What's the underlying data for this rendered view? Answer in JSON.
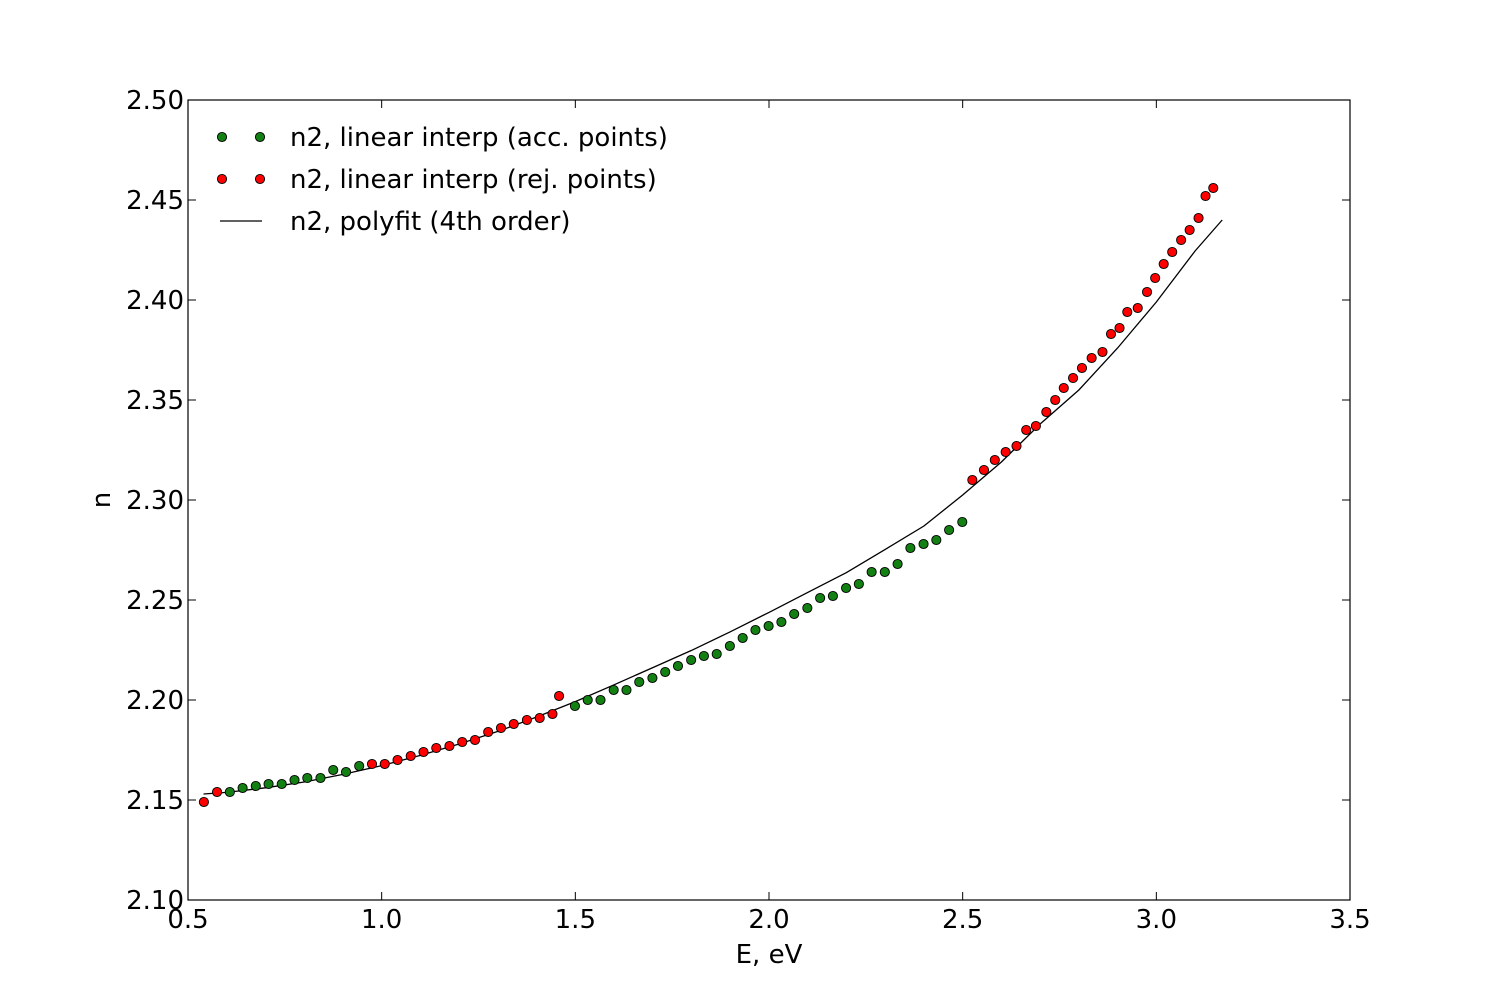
{
  "chart_data": {
    "type": "scatter",
    "title": "",
    "xlabel": "E, eV",
    "ylabel": "n",
    "xlim": [
      0.5,
      3.5
    ],
    "ylim": [
      2.1,
      2.5
    ],
    "xticks": [
      "0.5",
      "1.0",
      "1.5",
      "2.0",
      "2.5",
      "3.0",
      "3.5"
    ],
    "yticks": [
      "2.10",
      "2.15",
      "2.20",
      "2.25",
      "2.30",
      "2.35",
      "2.40",
      "2.45",
      "2.50"
    ],
    "grid": false,
    "legend_position": "top-left",
    "series": [
      {
        "name": "n2, linear interp (acc. points)",
        "kind": "markers",
        "color": "#138013",
        "x": [
          0.608,
          0.641,
          0.675,
          0.708,
          0.742,
          0.775,
          0.808,
          0.842,
          0.875,
          0.908,
          0.942,
          1.499,
          1.532,
          1.565,
          1.599,
          1.632,
          1.665,
          1.699,
          1.732,
          1.765,
          1.799,
          1.832,
          1.865,
          1.899,
          1.932,
          1.965,
          1.999,
          2.032,
          2.065,
          2.099,
          2.132,
          2.165,
          2.199,
          2.232,
          2.265,
          2.299,
          2.332,
          2.365,
          2.399,
          2.432,
          2.465,
          2.499
        ],
        "y": [
          2.154,
          2.156,
          2.157,
          2.158,
          2.158,
          2.16,
          2.161,
          2.161,
          2.165,
          2.164,
          2.167,
          2.197,
          2.2,
          2.2,
          2.205,
          2.205,
          2.209,
          2.211,
          2.214,
          2.217,
          2.22,
          2.222,
          2.223,
          2.227,
          2.231,
          2.235,
          2.237,
          2.239,
          2.243,
          2.246,
          2.251,
          2.252,
          2.256,
          2.258,
          2.264,
          2.264,
          2.268,
          2.276,
          2.278,
          2.28,
          2.285,
          2.289
        ]
      },
      {
        "name": "n2, linear interp (rej. points)",
        "kind": "markers",
        "color": "#ff0000",
        "x": [
          0.541,
          0.575,
          0.975,
          1.008,
          1.041,
          1.075,
          1.108,
          1.141,
          1.175,
          1.208,
          1.241,
          1.275,
          1.308,
          1.341,
          1.375,
          1.408,
          1.441,
          1.458,
          2.525,
          2.555,
          2.583,
          2.611,
          2.639,
          2.664,
          2.689,
          2.716,
          2.739,
          2.761,
          2.785,
          2.808,
          2.833,
          2.861,
          2.883,
          2.905,
          2.925,
          2.952,
          2.976,
          2.997,
          3.019,
          3.041,
          3.064,
          3.086,
          3.109,
          3.127,
          3.147
        ],
        "y": [
          2.149,
          2.154,
          2.168,
          2.168,
          2.17,
          2.172,
          2.174,
          2.176,
          2.177,
          2.179,
          2.18,
          2.184,
          2.186,
          2.188,
          2.19,
          2.191,
          2.193,
          2.202,
          2.31,
          2.315,
          2.32,
          2.324,
          2.327,
          2.335,
          2.337,
          2.344,
          2.35,
          2.356,
          2.361,
          2.366,
          2.371,
          2.374,
          2.383,
          2.386,
          2.394,
          2.396,
          2.404,
          2.411,
          2.418,
          2.424,
          2.43,
          2.435,
          2.441,
          2.452,
          2.456
        ]
      },
      {
        "name": "n2, polyfit (4th order)",
        "kind": "line",
        "color": "#000000",
        "x": [
          0.54,
          0.6,
          0.7,
          0.8,
          0.9,
          1.0,
          1.1,
          1.2,
          1.3,
          1.4,
          1.5,
          1.6,
          1.7,
          1.8,
          1.9,
          2.0,
          2.1,
          2.2,
          2.3,
          2.4,
          2.5,
          2.6,
          2.7,
          2.8,
          2.9,
          3.0,
          3.1,
          3.17
        ],
        "y": [
          2.153,
          2.1538,
          2.1561,
          2.159,
          2.1628,
          2.1672,
          2.1723,
          2.178,
          2.1843,
          2.1915,
          2.1992,
          2.2076,
          2.2162,
          2.2248,
          2.2341,
          2.2438,
          2.2538,
          2.2637,
          2.2753,
          2.287,
          2.3025,
          2.319,
          2.338,
          2.355,
          2.376,
          2.399,
          2.4245,
          2.44
        ]
      }
    ]
  }
}
